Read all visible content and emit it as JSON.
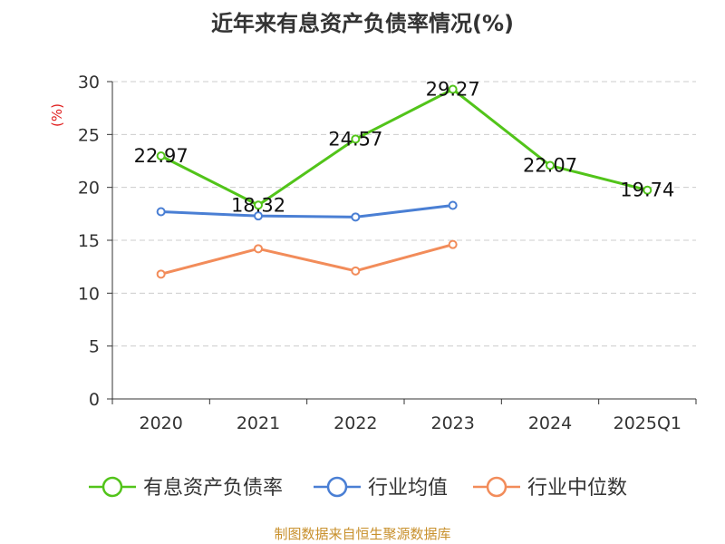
{
  "title": "近年来有息资产负债率情况(%)",
  "source": "制图数据来自恒生聚源数据库",
  "chart_data": {
    "type": "line",
    "categories": [
      "2020",
      "2021",
      "2022",
      "2023",
      "2024",
      "2025Q1"
    ],
    "ylabel": "(%)",
    "ylim": [
      0,
      30
    ],
    "yticks": [
      0,
      5,
      10,
      15,
      20,
      25,
      30
    ],
    "grid": true,
    "legend_position": "bottom",
    "series": [
      {
        "name": "有息资产负债率",
        "color": "#52c41a",
        "values": [
          22.97,
          18.32,
          24.57,
          29.27,
          22.07,
          19.74
        ],
        "labels": [
          "22.97",
          "18.32",
          "24.57",
          "29.27",
          "22.07",
          "19.74"
        ]
      },
      {
        "name": "行业均值",
        "color": "#4a7fd4",
        "values": [
          17.7,
          17.3,
          17.2,
          18.3,
          null,
          null
        ]
      },
      {
        "name": "行业中位数",
        "color": "#f28c5a",
        "values": [
          11.8,
          14.2,
          12.1,
          14.6,
          null,
          null
        ]
      }
    ]
  },
  "colors": {
    "axis": "#333333",
    "grid": "#cccccc",
    "ylabel": "#e02020",
    "source": "#c8902c"
  }
}
